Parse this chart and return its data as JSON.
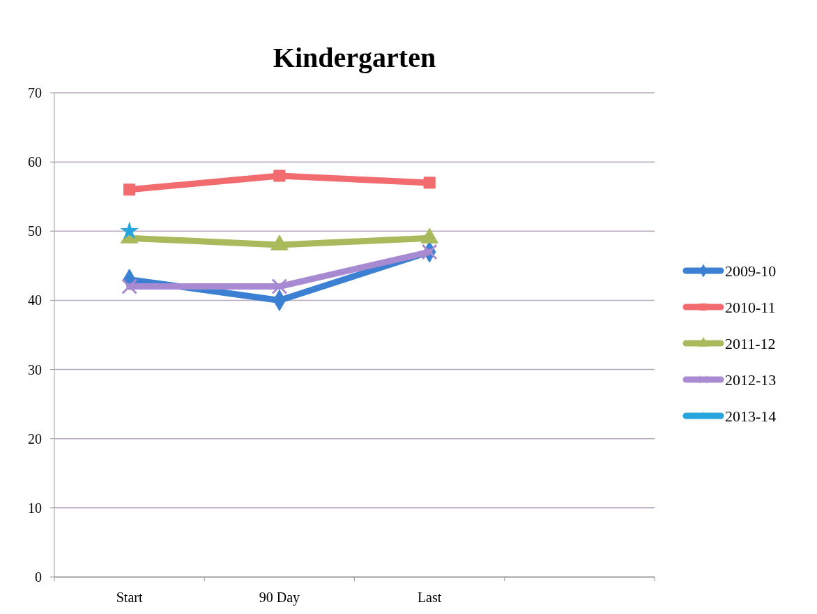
{
  "chart_data": {
    "type": "line",
    "title": "Kindergarten",
    "categories": [
      "Start",
      "90 Day",
      "Last",
      null
    ],
    "series": [
      {
        "name": "2009-10",
        "color": "#3b80d2",
        "marker": "diamond",
        "values": [
          43,
          40,
          47,
          null
        ]
      },
      {
        "name": "2010-11",
        "color": "#f26b6e",
        "marker": "square",
        "values": [
          56,
          58,
          57,
          null
        ]
      },
      {
        "name": "2011-12",
        "color": "#a9ba5c",
        "marker": "triangle",
        "values": [
          49,
          48,
          49,
          null
        ]
      },
      {
        "name": "2012-13",
        "color": "#a88ad2",
        "marker": "cross",
        "values": [
          42,
          42,
          47,
          null
        ]
      },
      {
        "name": "2013-14",
        "color": "#26a6dc",
        "marker": "star",
        "values": [
          50,
          null,
          null,
          null
        ]
      }
    ],
    "ylim": [
      0,
      70
    ],
    "yticks": [
      0,
      10,
      20,
      30,
      40,
      50,
      60,
      70
    ],
    "grid": "y",
    "legend": "right"
  }
}
